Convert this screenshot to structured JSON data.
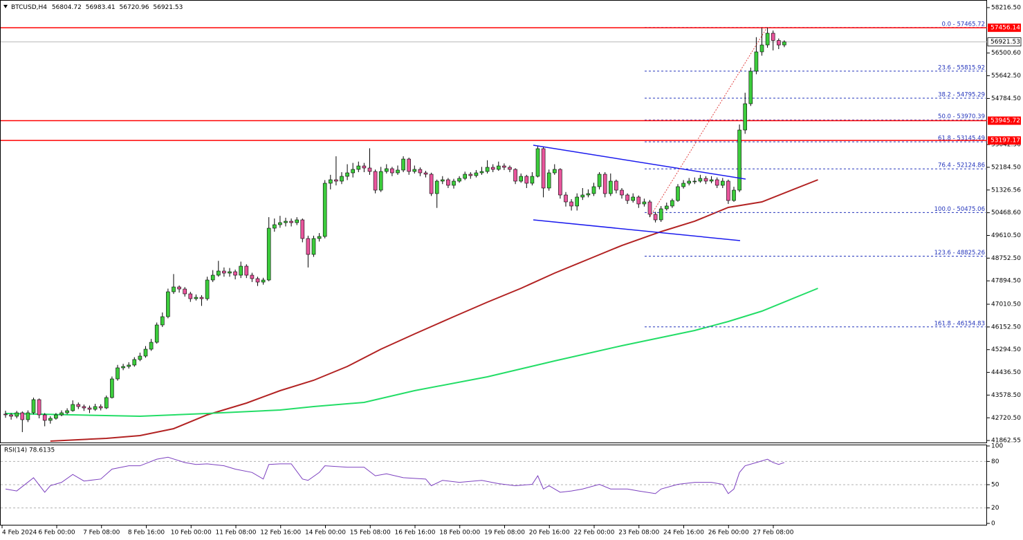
{
  "header": {
    "symbol": "BTCUSD,H4"
  },
  "chart_data": {
    "type": "candlestick",
    "up_color": "#3ccc3c",
    "down_color": "#e8559c",
    "wick_color": "#000000",
    "open": [
      42860,
      42832,
      42779,
      42910,
      42649,
      42910,
      43407,
      42832,
      42623,
      42701,
      42832,
      42910,
      42989,
      43224,
      43145,
      43093,
      43041,
      43145,
      43093,
      43485,
      44190,
      44608,
      44660,
      44713,
      44922,
      45052,
      45313,
      45574,
      46228,
      46541,
      47481,
      47664,
      47586,
      47403,
      47220,
      47272,
      47220,
      47926,
      48108,
      48265,
      48187,
      48239,
      48108,
      48448,
      48108,
      47978,
      47847,
      47926,
      49884,
      50015,
      50093,
      50146,
      50093,
      50198,
      49493,
      48892,
      49493,
      49571,
      51582,
      51713,
      51661,
      51843,
      51974,
      52105,
      52235,
      52157,
      52026,
      51321,
      52026,
      52131,
      51974,
      52079,
      52496,
      52026,
      52105,
      51974,
      51922,
      51190,
      51661,
      51713,
      51504,
      51661,
      51765,
      51922,
      51870,
      51974,
      52026,
      52183,
      52105,
      52235,
      52183,
      52105,
      51661,
      51843,
      51582,
      51843,
      52888,
      51400,
      51974,
      52105,
      51138,
      50877,
      50721,
      51060,
      51138,
      51190,
      51452,
      51922,
      51190,
      51661,
      51321,
      51138,
      50929,
      51060,
      50799,
      50877,
      50407,
      50198,
      50616,
      50721,
      50929,
      51452,
      51582,
      51661,
      51661,
      51765,
      51661,
      51713,
      51504,
      51661,
      50929,
      51321,
      53593,
      54586,
      55814,
      56545,
      56806,
      57250,
      56976,
      56804.72
    ],
    "high": [
      42990,
      42900,
      42980,
      42960,
      43000,
      43480,
      43450,
      42900,
      42780,
      42900,
      43000,
      43080,
      43380,
      43300,
      43220,
      43180,
      43250,
      43230,
      43560,
      44280,
      44720,
      44760,
      44820,
      45010,
      45180,
      45430,
      45700,
      46320,
      46700,
      47600,
      48150,
      47720,
      47660,
      47480,
      47380,
      47350,
      48050,
      48300,
      48650,
      48400,
      48380,
      48320,
      48620,
      48520,
      48200,
      48050,
      48010,
      50300,
      50250,
      50350,
      50280,
      50250,
      50300,
      50250,
      49600,
      49600,
      49700,
      51700,
      51900,
      52600,
      52000,
      52300,
      52350,
      52400,
      52350,
      52900,
      52100,
      52200,
      52300,
      52200,
      52250,
      52600,
      52550,
      52250,
      52180,
      52050,
      51980,
      51720,
      51850,
      51780,
      51750,
      51850,
      52020,
      52000,
      52080,
      52200,
      52450,
      52300,
      52400,
      52330,
      52250,
      52150,
      51950,
      51900,
      52000,
      53000,
      52950,
      52100,
      52300,
      52150,
      51250,
      50980,
      51200,
      51400,
      51350,
      51600,
      52000,
      52000,
      51950,
      51720,
      51400,
      51200,
      51200,
      51120,
      51000,
      50950,
      50500,
      50720,
      50850,
      51000,
      51550,
      51700,
      51780,
      51800,
      51900,
      51850,
      51850,
      51800,
      51780,
      51720,
      51450,
      53800,
      55000,
      55950,
      57100,
      57450,
      57465.72,
      57350,
      57050,
      56983.41
    ],
    "low": [
      42720,
      42650,
      42700,
      42180,
      42560,
      42850,
      42700,
      42400,
      42500,
      42650,
      42780,
      42850,
      42950,
      43050,
      42980,
      42900,
      42980,
      43000,
      43050,
      43450,
      44120,
      44520,
      44580,
      44650,
      44860,
      44990,
      45250,
      45520,
      46150,
      46480,
      47400,
      47450,
      47300,
      47100,
      47150,
      46950,
      47150,
      47850,
      48050,
      48050,
      48050,
      47950,
      48000,
      48000,
      47850,
      47700,
      47750,
      47880,
      49750,
      49900,
      49950,
      49950,
      50000,
      49350,
      48400,
      48800,
      49380,
      49500,
      51350,
      51500,
      51550,
      51700,
      51800,
      52000,
      52000,
      51900,
      51200,
      51250,
      51950,
      51850,
      51900,
      52000,
      51900,
      51950,
      51850,
      51800,
      51100,
      50650,
      51550,
      51400,
      51380,
      51600,
      51700,
      51750,
      51800,
      51900,
      51950,
      52000,
      52050,
      52080,
      52000,
      51550,
      51600,
      51400,
      51500,
      51800,
      51050,
      51300,
      51900,
      51000,
      50700,
      50550,
      50550,
      50950,
      51050,
      51100,
      51350,
      51050,
      51100,
      51200,
      51000,
      50800,
      50850,
      50650,
      50700,
      50300,
      50100,
      50120,
      50550,
      50650,
      50880,
      51380,
      51500,
      51550,
      51600,
      51550,
      51580,
      51400,
      51400,
      50800,
      50880,
      51250,
      53450,
      54500,
      55700,
      56400,
      56700,
      56600,
      56650,
      56720.96
    ],
    "close": [
      42832,
      42779,
      42910,
      42649,
      42910,
      43407,
      42832,
      42623,
      42701,
      42832,
      42910,
      42989,
      43224,
      43145,
      43093,
      43041,
      43145,
      43093,
      43485,
      44190,
      44608,
      44660,
      44713,
      44922,
      45052,
      45313,
      45574,
      46228,
      46541,
      47481,
      47664,
      47586,
      47403,
      47220,
      47272,
      47220,
      47926,
      48108,
      48265,
      48187,
      48239,
      48108,
      48448,
      48108,
      47978,
      47847,
      47926,
      49884,
      50015,
      50093,
      50146,
      50093,
      50198,
      49493,
      48892,
      49493,
      49571,
      51582,
      51713,
      51661,
      51843,
      51974,
      52105,
      52235,
      52157,
      52026,
      51321,
      52026,
      52131,
      51974,
      52079,
      52496,
      52026,
      52105,
      51974,
      51922,
      51190,
      51661,
      51713,
      51504,
      51661,
      51765,
      51922,
      51870,
      51974,
      52026,
      52183,
      52105,
      52235,
      52183,
      52105,
      51661,
      51843,
      51582,
      51843,
      52888,
      51400,
      51974,
      52105,
      51138,
      50877,
      50721,
      51060,
      51138,
      51190,
      51452,
      51922,
      51190,
      51661,
      51321,
      51138,
      50929,
      51060,
      50799,
      50877,
      50407,
      50198,
      50616,
      50721,
      50929,
      51452,
      51582,
      51661,
      51661,
      51765,
      51661,
      51713,
      51504,
      51661,
      50929,
      51321,
      53593,
      54586,
      55814,
      56545,
      56806,
      57250,
      56976,
      56804.72,
      56921.53
    ],
    "x_labels": [
      "4 Feb 2024",
      "6 Feb 00:00",
      "7 Feb 08:00",
      "8 Feb 16:00",
      "10 Feb 00:00",
      "11 Feb 08:00",
      "12 Feb 16:00",
      "14 Feb 00:00",
      "15 Feb 08:00",
      "16 Feb 16:00",
      "18 Feb 00:00",
      "19 Feb 08:00",
      "20 Feb 16:00",
      "22 Feb 00:00",
      "23 Feb 08:00",
      "24 Feb 16:00",
      "26 Feb 00:00",
      "27 Feb 08:00"
    ],
    "ylim": [
      41787,
      58452
    ],
    "yticks": [
      {
        "value": 58216.5,
        "label": "58216.50"
      },
      {
        "value": 56500.6,
        "label": "56500.60"
      },
      {
        "value": 55642.5,
        "label": "55642.50"
      },
      {
        "value": 54784.5,
        "label": "54784.50"
      },
      {
        "value": 53042.5,
        "label": "53042.50"
      },
      {
        "value": 52184.5,
        "label": "52184.50"
      },
      {
        "value": 51326.56,
        "label": "51326.56"
      },
      {
        "value": 50468.6,
        "label": "50468.60"
      },
      {
        "value": 49610.5,
        "label": "49610.50"
      },
      {
        "value": 48752.5,
        "label": "48752.50"
      },
      {
        "value": 47894.5,
        "label": "47894.50"
      },
      {
        "value": 47010.5,
        "label": "47010.50"
      },
      {
        "value": 46152.5,
        "label": "46152.50"
      },
      {
        "value": 45294.5,
        "label": "45294.50"
      },
      {
        "value": 44436.5,
        "label": "44436.50"
      },
      {
        "value": 43578.5,
        "label": "43578.50"
      },
      {
        "value": 42720.5,
        "label": "42720.50"
      },
      {
        "value": 41862.55,
        "label": "41862.55"
      }
    ],
    "moving_averages": [
      {
        "color": "#b22222",
        "x": [
          8,
          18,
          24,
          30,
          36,
          43,
          49,
          55,
          61,
          67,
          73,
          80,
          86,
          92,
          98,
          104,
          110,
          117,
          123,
          129,
          135,
          145
        ],
        "values": [
          41840,
          41944,
          42048,
          42310,
          42832,
          43276,
          43746,
          44138,
          44660,
          45313,
          45888,
          46541,
          47090,
          47612,
          48187,
          48709,
          49231,
          49754,
          50146,
          50668,
          50877,
          51713
        ]
      },
      {
        "color": "#22dd66",
        "x": [
          0,
          12,
          24,
          36,
          49,
          55,
          64,
          73,
          86,
          98,
          110,
          123,
          129,
          135,
          145
        ],
        "values": [
          42884,
          42832,
          42780,
          42884,
          43015,
          43146,
          43302,
          43746,
          44269,
          44869,
          45444,
          46019,
          46358,
          46750,
          47612
        ]
      }
    ],
    "hlines": [
      {
        "value": 57456.14,
        "color": "#ff0000"
      },
      {
        "value": 53945.72,
        "color": "#ff0000"
      },
      {
        "value": 53197.17,
        "color": "#ff0000"
      }
    ],
    "fib_color": "#2233bb",
    "fib_levels": [
      {
        "value": 57465.72,
        "label": "0.0 - 57465.72"
      },
      {
        "value": 55815.92,
        "label": "23.6 - 55815.92"
      },
      {
        "value": 54795.29,
        "label": "38.2 - 54795.29"
      },
      {
        "value": 53970.39,
        "label": "50.0 - 53970.39"
      },
      {
        "value": 53145.49,
        "label": "61.8 - 53145.49"
      },
      {
        "value": 52124.86,
        "label": "76.4 - 52124.86"
      },
      {
        "value": 50475.06,
        "label": "100.0 - 50475.06"
      },
      {
        "value": 48825.26,
        "label": "123.6 - 48825.26"
      },
      {
        "value": 46154.83,
        "label": "161.8 - 46154.83"
      }
    ],
    "rsi": {
      "title": "RSI(14) 78.6135",
      "color": "#7b3fbf",
      "x": [
        0,
        2,
        5,
        7,
        8,
        10,
        12,
        14,
        17,
        19,
        22,
        24,
        27,
        29,
        32,
        34,
        36,
        39,
        41,
        44,
        46,
        47,
        49,
        51,
        53,
        54,
        56,
        57,
        61,
        64,
        66,
        68,
        71,
        75,
        76,
        78,
        81,
        85,
        88,
        91,
        94,
        95,
        96,
        97,
        99,
        101,
        103,
        106,
        108,
        111,
        113,
        116,
        117,
        120,
        123,
        126,
        128,
        129,
        130,
        131,
        132,
        134,
        136,
        137,
        138,
        139
      ],
      "values": [
        44.4,
        41.9,
        59.0,
        40.2,
        48.7,
        53.0,
        63.2,
        54.7,
        57.3,
        70.1,
        74.4,
        74.4,
        82.9,
        85.5,
        78.6,
        76.1,
        76.9,
        74.4,
        70.1,
        65.8,
        57.3,
        76.1,
        76.9,
        76.9,
        57.3,
        55.6,
        65.8,
        74.4,
        72.6,
        72.6,
        61.5,
        64.1,
        59.0,
        57.3,
        48.7,
        55.6,
        53.0,
        55.6,
        51.3,
        48.7,
        50.4,
        61.5,
        44.4,
        48.7,
        40.2,
        41.9,
        44.4,
        50.4,
        44.4,
        44.4,
        41.9,
        38.5,
        44.4,
        50.4,
        53.0,
        53.0,
        50.4,
        38.5,
        44.4,
        65.8,
        74.4,
        78.6,
        82.9,
        78.6,
        76.1,
        78.6135
      ],
      "ylim": [
        0,
        100
      ],
      "yticks": [
        0,
        20,
        50,
        80,
        100
      ],
      "levels": [
        20,
        50,
        80
      ]
    }
  }
}
